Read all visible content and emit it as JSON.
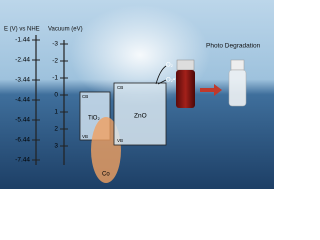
{
  "scales": {
    "left_title": "E (V) vs NHE",
    "right_title": "Vacuum (eV)",
    "left_ticks": [
      "-1.44",
      "-2.44",
      "-3.44",
      "-4.44",
      "-5.44",
      "-6.44",
      "-7.44"
    ],
    "right_ticks": [
      "-3",
      "-2",
      "-1",
      "0",
      "1",
      "2",
      "3"
    ]
  },
  "labels": {
    "photo_degradation": "Photo Degradation",
    "zno": "ZnO",
    "tio2": "TiO₂",
    "co": "Co",
    "o2": "O₂",
    "o2_radical": "O₂•⁻",
    "zno_cb": "CB",
    "zno_vb": "VB",
    "tio2_cb": "CB",
    "tio2_vb": "VB"
  }
}
